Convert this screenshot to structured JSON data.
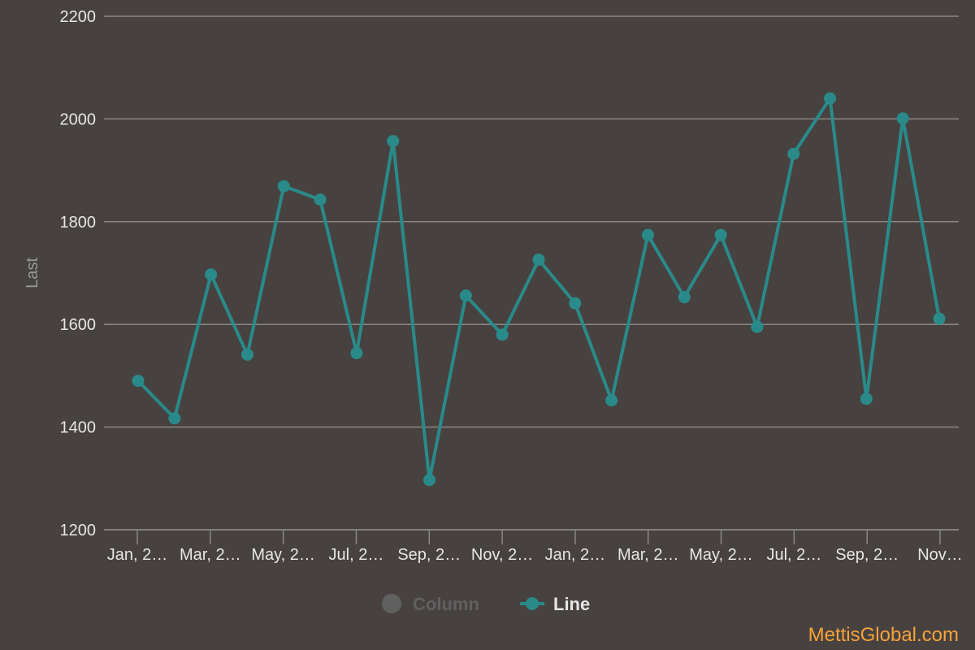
{
  "chart_data": {
    "type": "line",
    "title": "",
    "xlabel": "",
    "ylabel": "Last",
    "ylim": [
      1200,
      2200
    ],
    "yticks": [
      1200,
      1400,
      1600,
      1800,
      2000,
      2200
    ],
    "x_tick_labels": [
      "Jan, 2…",
      "Mar, 2…",
      "May, 2…",
      "Jul, 2…",
      "Sep, 2…",
      "Nov, 2…",
      "Jan, 2…",
      "Mar, 2…",
      "May, 2…",
      "Jul, 2…",
      "Sep, 2…",
      "Nov…"
    ],
    "grid": true,
    "legend_position": "bottom",
    "series": [
      {
        "name": "Column",
        "type": "column",
        "color": "#5b5b5b",
        "hidden": true,
        "values": []
      },
      {
        "name": "Line",
        "type": "line",
        "color": "#2a8a8a",
        "hidden": false,
        "values": [
          1490,
          1417,
          1697,
          1541,
          1869,
          1843,
          1544,
          1957,
          1297,
          1656,
          1580,
          1726,
          1641,
          1452,
          1774,
          1653,
          1774,
          1595,
          1932,
          2040,
          1455,
          2001,
          1611
        ]
      }
    ]
  },
  "credit": "MettisGlobal.com",
  "colors": {
    "background": "#474240",
    "grid": "#8a8685",
    "line": "#2a8a8a",
    "legend_hidden": "#606060",
    "legend_active": "#e6e6e6",
    "credit": "#f7a23a"
  }
}
